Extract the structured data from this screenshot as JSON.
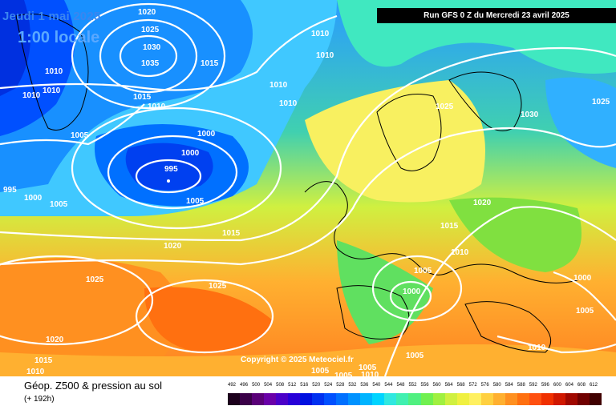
{
  "header": {
    "date": "Jeudi 1 mai 2025",
    "time": "1:00 locale",
    "run": "Run GFS 0 Z du Mercredi 23 avril 2025"
  },
  "copyright": "Copyright © 2025 Meteociel.fr",
  "footer": {
    "title": "Géop. Z500 & pression au sol",
    "subtitle": "(+ 192h)"
  },
  "scale": {
    "values": [
      "492",
      "496",
      "500",
      "504",
      "508",
      "512",
      "516",
      "520",
      "524",
      "528",
      "532",
      "536",
      "540",
      "544",
      "548",
      "552",
      "556",
      "560",
      "564",
      "568",
      "572",
      "576",
      "580",
      "584",
      "588",
      "592",
      "596",
      "600",
      "604",
      "608",
      "612"
    ],
    "colors": [
      "#1c001c",
      "#3a0048",
      "#5a0078",
      "#6a00a8",
      "#4b00c8",
      "#2800d8",
      "#0010e0",
      "#0030f0",
      "#0050ff",
      "#0070ff",
      "#0092ff",
      "#00b4ff",
      "#00d4ff",
      "#30e8e0",
      "#40f0b0",
      "#50f080",
      "#70f050",
      "#a0f040",
      "#d0f040",
      "#f0f040",
      "#fff060",
      "#ffd040",
      "#ffb030",
      "#ff9020",
      "#ff7010",
      "#ff5010",
      "#f03000",
      "#d01800",
      "#a00800",
      "#700000",
      "#400000"
    ]
  },
  "isobars": [
    {
      "value": "1020",
      "id": "1"
    },
    {
      "value": "1025",
      "id": "2"
    },
    {
      "value": "1030",
      "id": "3"
    },
    {
      "value": "1035",
      "id": "4"
    },
    {
      "value": "1015",
      "id": "5"
    },
    {
      "value": "1010",
      "id": "6"
    },
    {
      "value": "1010",
      "id": "7"
    },
    {
      "value": "1010",
      "id": "8"
    },
    {
      "value": "1010",
      "id": "9"
    },
    {
      "value": "1010",
      "id": "10"
    },
    {
      "value": "1015",
      "id": "11"
    },
    {
      "value": "1010",
      "id": "12"
    },
    {
      "value": "1005",
      "id": "13"
    },
    {
      "value": "1000",
      "id": "14"
    },
    {
      "value": "1000",
      "id": "15"
    },
    {
      "value": "995",
      "id": "16"
    },
    {
      "value": "1005",
      "id": "17"
    },
    {
      "value": "995",
      "id": "18"
    },
    {
      "value": "1000",
      "id": "19"
    },
    {
      "value": "1005",
      "id": "20"
    },
    {
      "value": "1015",
      "id": "21"
    },
    {
      "value": "1020",
      "id": "22"
    },
    {
      "value": "1025",
      "id": "23"
    },
    {
      "value": "1025",
      "id": "24"
    },
    {
      "value": "1020",
      "id": "25"
    },
    {
      "value": "1015",
      "id": "26"
    },
    {
      "value": "1010",
      "id": "27"
    },
    {
      "value": "1010",
      "id": "28"
    },
    {
      "value": "1010",
      "id": "29"
    },
    {
      "value": "1025",
      "id": "30"
    },
    {
      "value": "1030",
      "id": "31"
    },
    {
      "value": "1025",
      "id": "32"
    },
    {
      "value": "1020",
      "id": "33"
    },
    {
      "value": "1015",
      "id": "34"
    },
    {
      "value": "1010",
      "id": "35"
    },
    {
      "value": "1005",
      "id": "36"
    },
    {
      "value": "1000",
      "id": "37"
    },
    {
      "value": "1000",
      "id": "38"
    },
    {
      "value": "1005",
      "id": "39"
    },
    {
      "value": "1010",
      "id": "40"
    },
    {
      "value": "1005",
      "id": "41"
    },
    {
      "value": "1005",
      "id": "42"
    },
    {
      "value": "1005",
      "id": "43"
    },
    {
      "value": "1005",
      "id": "44"
    },
    {
      "value": "1010",
      "id": "45"
    }
  ]
}
